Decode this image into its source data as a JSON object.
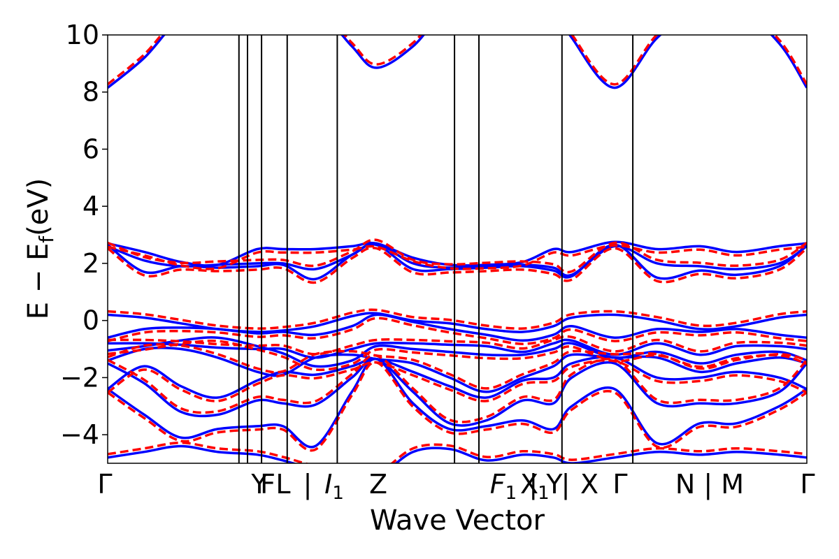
{
  "chart_data": {
    "type": "line",
    "xlabel": "Wave Vector",
    "ylabel": "E − E",
    "ylabel_sub": "f",
    "ylabel_unit": "(eV)",
    "ylim": [
      -5,
      10
    ],
    "yticks": [
      -4,
      -2,
      0,
      2,
      4,
      6,
      8,
      10
    ],
    "ytick_labels": [
      "−4",
      "−2",
      "0",
      "2",
      "4",
      "6",
      "8",
      "10"
    ],
    "x_path_length": 100,
    "kpoints": [
      {
        "x": 0,
        "label": "Γ"
      },
      {
        "x": 24.5,
        "label": "Y"
      },
      {
        "x": 26.0,
        "label": "F"
      },
      {
        "x": 28.7,
        "label": "L"
      },
      {
        "x": 34.0,
        "label": "| I"
      },
      {
        "x": 44.0,
        "label": "Z"
      },
      {
        "x": 68.0,
        "label": "F"
      },
      {
        "x": 73.0,
        "label": "X"
      },
      {
        "x": 83.0,
        "label": "Γ"
      },
      {
        "x": 97.0,
        "label": "N | M"
      },
      {
        "x": 100,
        "label": "Γ"
      }
    ],
    "xtick_labels": [
      {
        "x": 0,
        "text": "Γ"
      },
      {
        "x": 24.5,
        "text": "Y"
      },
      {
        "x": 26.0,
        "text": "F"
      },
      {
        "x": 28.7,
        "text": "L"
      },
      {
        "x": 33.0,
        "text": "|"
      },
      {
        "x": 36.2,
        "text": "I",
        "sub": "1"
      },
      {
        "x": 44.0,
        "text": "Z"
      },
      {
        "x": 65.0,
        "text": "F",
        "sub": "1"
      },
      {
        "x": 68.3,
        "text": "X"
      },
      {
        "x": 70.5,
        "text": "|",
        "sub": "1"
      },
      {
        "x": 72.5,
        "text": "Y"
      },
      {
        "x": 74.0,
        "text": "|"
      },
      {
        "x": 77.5,
        "text": "X"
      },
      {
        "x": 83.0,
        "text": "Γ"
      },
      {
        "x": 97.0,
        "text": "N | M"
      },
      {
        "x": 114.5,
        "text": "Γ"
      }
    ],
    "series": [
      {
        "style": "solid",
        "color": "#0000ff",
        "bands": [
          {
            "x": [
              0,
              6,
              12,
              18,
              24.5,
              28.7,
              34,
              40,
              44,
              50,
              56,
              62,
              68,
              73,
              76,
              83,
              90,
              97,
              103,
              110,
              114.5
            ],
            "y": [
              8.15,
              9.2,
              10.6,
              11,
              11,
              11,
              11,
              9.6,
              8.85,
              9.6,
              11,
              11,
              11,
              11,
              9.9,
              8.15,
              9.9,
              11,
              11,
              9.7,
              8.15
            ]
          },
          {
            "x": [
              0,
              6,
              12,
              18,
              24.5,
              28.7,
              34,
              40,
              44,
              50,
              56,
              62,
              68,
              73,
              76,
              83,
              90,
              97,
              103,
              110,
              114.5
            ],
            "y": [
              2.7,
              2.4,
              2.05,
              1.95,
              2.5,
              2.5,
              2.5,
              2.6,
              2.7,
              2.2,
              1.95,
              1.95,
              2.05,
              2.5,
              2.4,
              2.75,
              2.5,
              2.6,
              2.4,
              2.6,
              2.7
            ]
          },
          {
            "x": [
              0,
              6,
              12,
              18,
              24.5,
              28.7,
              34,
              40,
              44,
              50,
              56,
              62,
              68,
              73,
              76,
              83,
              90,
              97,
              103,
              110,
              114.5
            ],
            "y": [
              2.6,
              2.1,
              1.9,
              1.95,
              2.0,
              2.0,
              1.8,
              2.3,
              2.7,
              2.0,
              1.85,
              1.9,
              1.95,
              1.85,
              1.6,
              2.6,
              2.0,
              1.9,
              1.8,
              2.0,
              2.6
            ]
          },
          {
            "x": [
              0,
              6,
              12,
              18,
              24.5,
              28.7,
              34,
              40,
              44,
              50,
              56,
              62,
              68,
              73,
              76,
              83,
              90,
              97,
              103,
              110,
              114.5
            ],
            "y": [
              2.65,
              1.7,
              1.9,
              1.85,
              1.9,
              1.95,
              1.45,
              2.3,
              2.65,
              1.8,
              1.8,
              1.85,
              1.9,
              1.75,
              1.55,
              2.65,
              1.5,
              1.75,
              1.6,
              1.9,
              2.65
            ]
          },
          {
            "x": [
              0,
              6,
              12,
              18,
              24.5,
              28.7,
              34,
              40,
              44,
              50,
              56,
              62,
              68,
              73,
              76,
              83,
              90,
              97,
              103,
              110,
              114.5
            ],
            "y": [
              0.2,
              0.1,
              -0.1,
              -0.3,
              -0.4,
              -0.35,
              -0.2,
              0.15,
              0.25,
              0.0,
              -0.1,
              -0.3,
              -0.4,
              -0.2,
              0.1,
              0.2,
              0.0,
              -0.3,
              -0.2,
              0.1,
              0.2
            ]
          },
          {
            "x": [
              0,
              6,
              12,
              18,
              24.5,
              28.7,
              34,
              40,
              44,
              50,
              56,
              62,
              68,
              73,
              76,
              83,
              90,
              97,
              103,
              110,
              114.5
            ],
            "y": [
              -0.6,
              -0.3,
              -0.25,
              -0.3,
              -0.45,
              -0.4,
              -0.5,
              -0.2,
              0.2,
              -0.05,
              -0.3,
              -0.5,
              -0.7,
              -0.5,
              -0.2,
              -0.6,
              -0.3,
              -0.4,
              -0.3,
              -0.5,
              -0.6
            ]
          },
          {
            "x": [
              0,
              6,
              12,
              18,
              24.5,
              28.7,
              34,
              40,
              44,
              50,
              56,
              62,
              68,
              73,
              76,
              83,
              90,
              97,
              103,
              110,
              114.5
            ],
            "y": [
              -0.8,
              -0.8,
              -0.85,
              -0.95,
              -1.0,
              -1.0,
              -1.3,
              -1.0,
              -0.8,
              -0.8,
              -0.85,
              -0.9,
              -1.1,
              -0.8,
              -0.7,
              -1.2,
              -0.8,
              -1.2,
              -0.9,
              -0.9,
              -1.0
            ]
          },
          {
            "x": [
              0,
              6,
              12,
              18,
              24.5,
              28.7,
              34,
              40,
              44,
              50,
              56,
              62,
              68,
              73,
              76,
              83,
              90,
              97,
              103,
              110,
              114.5
            ],
            "y": [
              -1.05,
              -0.9,
              -0.7,
              -0.6,
              -0.9,
              -1.15,
              -1.6,
              -1.4,
              -0.9,
              -1.0,
              -1.1,
              -1.2,
              -1.2,
              -1.0,
              -0.8,
              -1.3,
              -1.1,
              -1.5,
              -1.2,
              -1.1,
              -1.4
            ]
          },
          {
            "x": [
              0,
              6,
              12,
              18,
              24.5,
              28.7,
              34,
              40,
              44,
              50,
              56,
              62,
              68,
              73,
              76,
              83,
              90,
              97,
              103,
              110,
              114.5
            ],
            "y": [
              -1.4,
              -1.0,
              -1.0,
              -1.3,
              -1.8,
              -1.9,
              -1.3,
              -1.2,
              -1.35,
              -1.5,
              -2.0,
              -2.5,
              -2.0,
              -1.6,
              -1.2,
              -1.3,
              -1.3,
              -1.8,
              -1.5,
              -1.3,
              -1.5
            ]
          },
          {
            "x": [
              0,
              6,
              12,
              18,
              24.5,
              28.7,
              34,
              40,
              44,
              50,
              56,
              62,
              68,
              73,
              76,
              83,
              90,
              97,
              103,
              110,
              114.5
            ],
            "y": [
              -2.4,
              -1.6,
              -2.3,
              -2.7,
              -2.1,
              -1.8,
              -1.9,
              -1.6,
              -1.35,
              -1.8,
              -2.3,
              -2.7,
              -2.1,
              -2.0,
              -1.5,
              -1.3,
              -2.0,
              -2.0,
              -1.8,
              -2.0,
              -2.4
            ]
          },
          {
            "x": [
              0,
              6,
              12,
              18,
              24.5,
              28.7,
              34,
              40,
              44,
              50,
              56,
              62,
              68,
              73,
              76,
              83,
              90,
              97,
              103,
              110,
              114.5
            ],
            "y": [
              -1.5,
              -2.2,
              -3.2,
              -3.3,
              -2.8,
              -2.9,
              -2.95,
              -2.0,
              -1.35,
              -2.5,
              -3.6,
              -3.5,
              -2.8,
              -2.9,
              -2.0,
              -1.5,
              -2.9,
              -2.9,
              -2.9,
              -2.5,
              -1.5
            ]
          },
          {
            "x": [
              0,
              6,
              12,
              18,
              24.5,
              28.7,
              34,
              40,
              44,
              50,
              56,
              62,
              68,
              73,
              76,
              83,
              90,
              97,
              103,
              110,
              114.5
            ],
            "y": [
              -2.4,
              -3.3,
              -4.1,
              -3.8,
              -3.7,
              -3.7,
              -4.4,
              -2.5,
              -1.35,
              -2.9,
              -3.8,
              -3.7,
              -3.5,
              -3.8,
              -3.0,
              -2.4,
              -4.3,
              -3.6,
              -3.6,
              -3.0,
              -2.4
            ]
          },
          {
            "x": [
              0,
              6,
              12,
              18,
              24.5,
              28.7,
              34,
              40,
              44,
              50,
              56,
              62,
              68,
              73,
              76,
              83,
              90,
              97,
              103,
              110,
              114.5
            ],
            "y": [
              -4.8,
              -4.6,
              -4.4,
              -4.6,
              -4.7,
              -4.9,
              -5.2,
              -5.3,
              -5.5,
              -4.6,
              -4.5,
              -4.9,
              -4.7,
              -4.8,
              -5.0,
              -4.8,
              -4.6,
              -4.7,
              -4.6,
              -4.7,
              -4.8
            ]
          }
        ]
      },
      {
        "style": "dashed",
        "color": "#ff0000",
        "offset": 0.12
      }
    ],
    "grid": false,
    "legend": "none"
  }
}
